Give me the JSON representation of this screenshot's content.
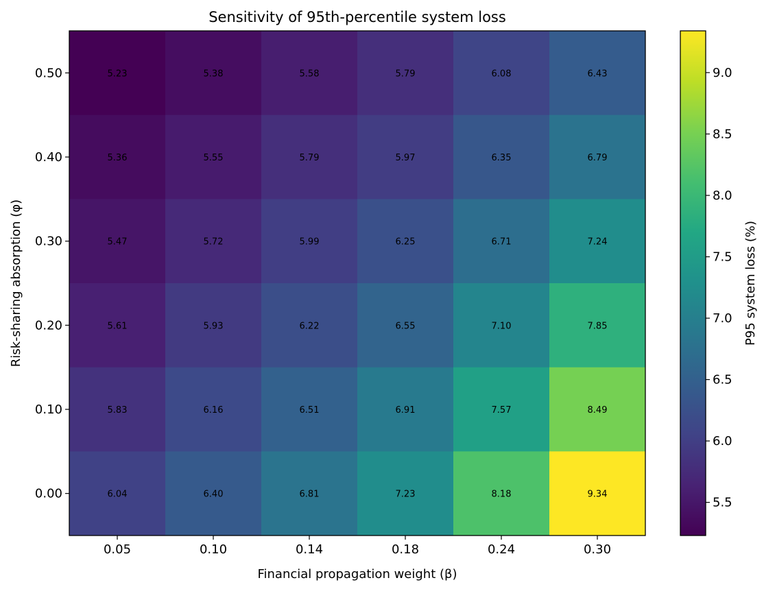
{
  "chart_data": {
    "type": "heatmap",
    "title": "Sensitivity of 95th-percentile system loss",
    "xlabel": "Financial propagation weight (β)",
    "ylabel": "Risk-sharing absorption (φ)",
    "x_categories": [
      "0.05",
      "0.10",
      "0.14",
      "0.18",
      "0.24",
      "0.30"
    ],
    "y_categories": [
      "0.50",
      "0.40",
      "0.30",
      "0.20",
      "0.10",
      "0.00"
    ],
    "values": [
      [
        5.23,
        5.38,
        5.58,
        5.79,
        6.08,
        6.43
      ],
      [
        5.36,
        5.55,
        5.79,
        5.97,
        6.35,
        6.79
      ],
      [
        5.47,
        5.72,
        5.99,
        6.25,
        6.71,
        7.24
      ],
      [
        5.61,
        5.93,
        6.22,
        6.55,
        7.1,
        7.85
      ],
      [
        5.83,
        6.16,
        6.51,
        6.91,
        7.57,
        8.49
      ],
      [
        6.04,
        6.4,
        6.81,
        7.23,
        8.18,
        9.34
      ]
    ],
    "colorscale": "viridis",
    "value_range": [
      5.23,
      9.34
    ],
    "colorbar": {
      "label": "P95 system loss (%)",
      "ticks": [
        "5.5",
        "6.0",
        "6.5",
        "7.0",
        "7.5",
        "8.0",
        "8.5",
        "9.0"
      ]
    },
    "grid": false
  }
}
